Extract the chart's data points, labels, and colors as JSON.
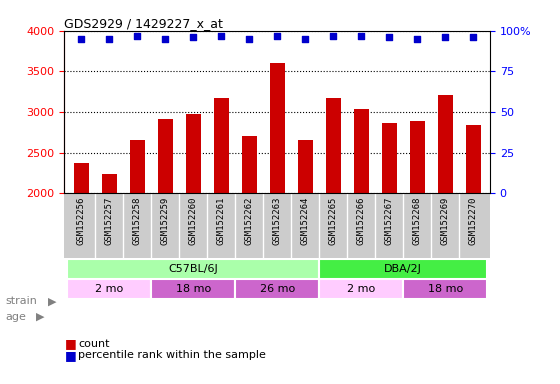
{
  "title": "GDS2929 / 1429227_x_at",
  "samples": [
    "GSM152256",
    "GSM152257",
    "GSM152258",
    "GSM152259",
    "GSM152260",
    "GSM152261",
    "GSM152262",
    "GSM152263",
    "GSM152264",
    "GSM152265",
    "GSM152266",
    "GSM152267",
    "GSM152268",
    "GSM152269",
    "GSM152270"
  ],
  "counts": [
    2370,
    2240,
    2650,
    2920,
    2980,
    3170,
    2700,
    3600,
    2650,
    3170,
    3040,
    2870,
    2890,
    3210,
    2840
  ],
  "percentiles": [
    95,
    95,
    97,
    95,
    96,
    97,
    95,
    97,
    95,
    97,
    97,
    96,
    95,
    96,
    96
  ],
  "bar_color": "#cc0000",
  "dot_color": "#0000cc",
  "ylim_left": [
    2000,
    4000
  ],
  "ylim_right": [
    0,
    100
  ],
  "yticks_left": [
    2000,
    2500,
    3000,
    3500,
    4000
  ],
  "yticks_right": [
    0,
    25,
    50,
    75,
    100
  ],
  "strain_groups": [
    {
      "label": "C57BL/6J",
      "start": 0,
      "end": 9,
      "color": "#aaffaa"
    },
    {
      "label": "DBA/2J",
      "start": 9,
      "end": 15,
      "color": "#44ee44"
    }
  ],
  "age_groups": [
    {
      "label": "2 mo",
      "start": 0,
      "end": 3,
      "color": "#ffccff"
    },
    {
      "label": "18 mo",
      "start": 3,
      "end": 6,
      "color": "#cc66cc"
    },
    {
      "label": "26 mo",
      "start": 6,
      "end": 9,
      "color": "#cc66cc"
    },
    {
      "label": "2 mo",
      "start": 9,
      "end": 12,
      "color": "#ffccff"
    },
    {
      "label": "18 mo",
      "start": 12,
      "end": 15,
      "color": "#cc66cc"
    }
  ],
  "strain_row_label": "strain",
  "age_row_label": "age",
  "legend_count_label": "count",
  "legend_pct_label": "percentile rank within the sample",
  "plot_bg": "#ffffff",
  "tick_bg": "#cccccc"
}
